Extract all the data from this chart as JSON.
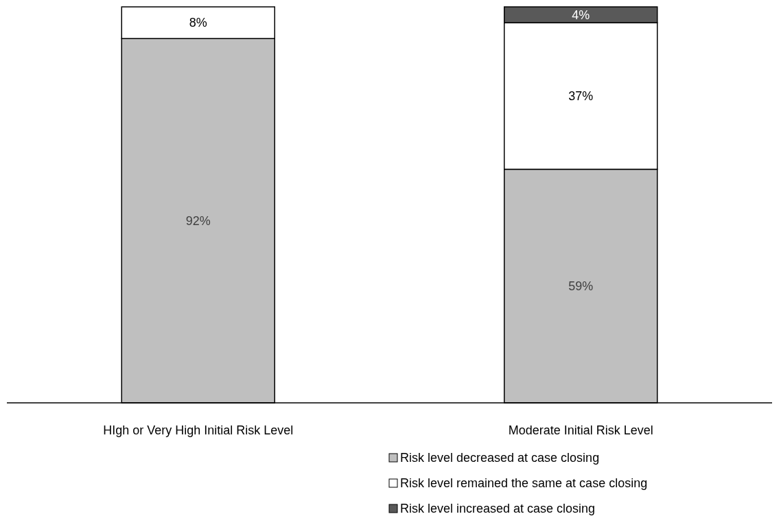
{
  "chart_data": {
    "type": "bar",
    "stacked": true,
    "categories": [
      "HIgh or Very High Initial Risk Level",
      "Moderate Initial Risk Level"
    ],
    "series": [
      {
        "name": "Risk level decreased at case closing",
        "color": "#bfbfbf",
        "values": [
          92,
          59
        ],
        "value_labels": [
          "92%",
          "59%"
        ]
      },
      {
        "name": "Risk level remained the same at case closing",
        "color": "#ffffff",
        "values": [
          8,
          37
        ],
        "value_labels": [
          "8%",
          "37%"
        ]
      },
      {
        "name": "Risk level increased at case closing",
        "color": "#595959",
        "values": [
          null,
          4
        ],
        "value_labels": [
          null,
          "4%"
        ]
      }
    ],
    "ylim": [
      0,
      100
    ],
    "legend": "bottom",
    "tick_labels": "x"
  }
}
